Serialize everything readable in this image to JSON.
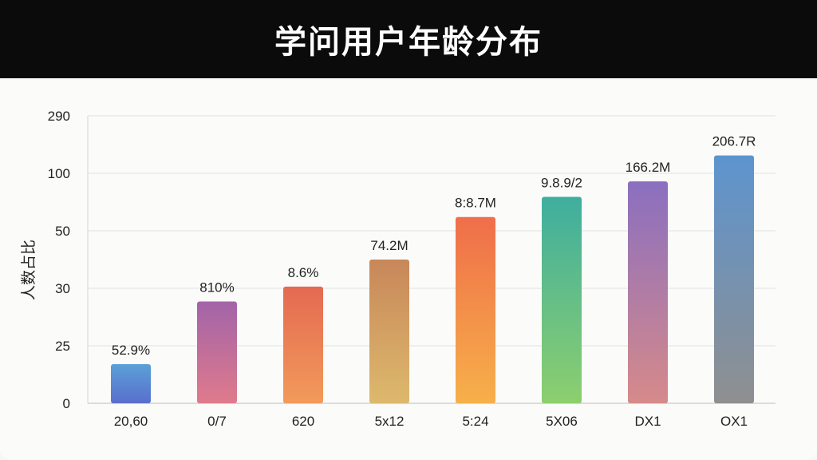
{
  "chart_data": {
    "type": "bar",
    "title": "学问用户年龄分布",
    "xlabel": "",
    "ylabel": "人数占比",
    "y_ticks": [
      "0",
      "25",
      "30",
      "50",
      "100",
      "290"
    ],
    "categories": [
      "20,60",
      "0/7",
      "620",
      "5x12",
      "5:24",
      "5X06",
      "DX1",
      "OX1"
    ],
    "values": [
      0.68,
      1.77,
      2.03,
      2.5,
      3.24,
      3.59,
      3.86,
      4.31
    ],
    "data_labels": [
      "52.9%",
      "810%",
      "8.6%",
      "74.2M",
      "8:8.7M",
      "9.8.9/2",
      "166.2M",
      "206.7R"
    ],
    "bar_colors": [
      [
        "#5aa0d8",
        "#5a6fcc"
      ],
      [
        "#a264a8",
        "#e07a8c"
      ],
      [
        "#e46a52",
        "#f29a5a"
      ],
      [
        "#c8875a",
        "#ddb96c"
      ],
      [
        "#ef6e4a",
        "#f7b04a"
      ],
      [
        "#3fae9e",
        "#8ccf6e"
      ],
      [
        "#8a6fc0",
        "#d68a8a"
      ],
      [
        "#5d94cf",
        "#8f8f8f"
      ]
    ],
    "grid": true,
    "legend": "none"
  }
}
